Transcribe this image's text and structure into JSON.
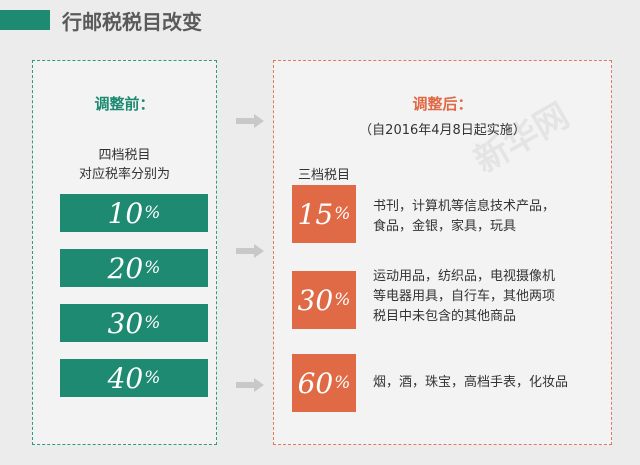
{
  "title": "行邮税税目改变",
  "watermark": "新华网",
  "left": {
    "heading": "调整前：",
    "subtitle_line1": "四档税目",
    "subtitle_line2": "对应税率分别为",
    "rates": [
      {
        "value": "10",
        "unit": "%"
      },
      {
        "value": "20",
        "unit": "%"
      },
      {
        "value": "30",
        "unit": "%"
      },
      {
        "value": "40",
        "unit": "%"
      }
    ]
  },
  "right": {
    "heading": "调整后：",
    "note": "（自2016年4月8日起实施）",
    "subtitle": "三档税目",
    "rates": [
      {
        "value": "15",
        "unit": "%",
        "line1": "书刊，计算机等信息技术产品，",
        "line2": "食品，金银，家具，玩具",
        "line3": ""
      },
      {
        "value": "30",
        "unit": "%",
        "line1": "运动用品，纺织品，电视摄像机",
        "line2": "等电器用具，自行车，其他两项",
        "line3": "税目中未包含的其他商品"
      },
      {
        "value": "60",
        "unit": "%",
        "line1": "烟，酒，珠宝，高档手表，化妆品",
        "line2": "",
        "line3": ""
      }
    ]
  },
  "colors": {
    "green": "#1e8a72",
    "orange": "#e06a45",
    "arrow": "#c8c8c8"
  }
}
